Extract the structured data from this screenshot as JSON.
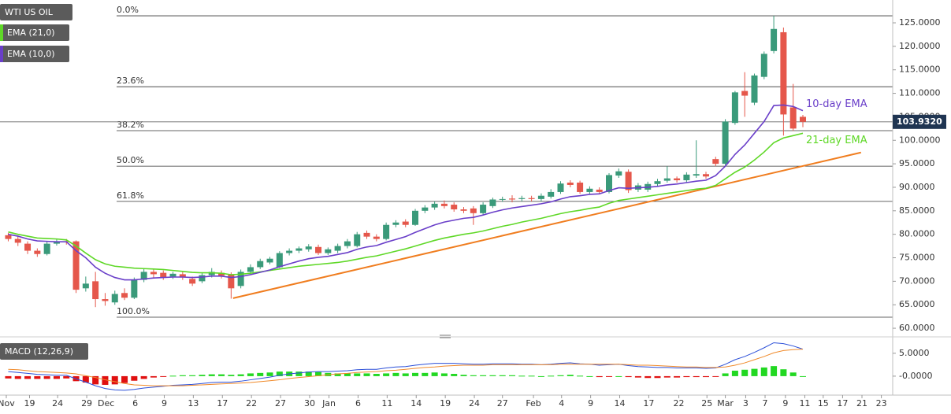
{
  "chart_data": {
    "type": "candlestick",
    "title": "WTI US OIL",
    "up_color": "#3a9a7a",
    "down_color": "#e5574b",
    "x": [
      0,
      1,
      2,
      3,
      4,
      5,
      6,
      7,
      8,
      9,
      10,
      11,
      12,
      13,
      14,
      15,
      16,
      17,
      18,
      19,
      20,
      21,
      22,
      23,
      24,
      25,
      26,
      27,
      28,
      29,
      30,
      31,
      32,
      33,
      34,
      35,
      36,
      37,
      38,
      39,
      40,
      41,
      42,
      43,
      44,
      45,
      46,
      47,
      48,
      49,
      50,
      51,
      52,
      53,
      54,
      55,
      56,
      57,
      58,
      59,
      60,
      61,
      62,
      63,
      64,
      65,
      66,
      67,
      68,
      69,
      70,
      71,
      72,
      73,
      74,
      75,
      76,
      77,
      78,
      79,
      80,
      81,
      82
    ],
    "open": [
      79.8,
      79.0,
      78.0,
      76.5,
      75.8,
      78.0,
      78.5,
      78.5,
      68.5,
      70.0,
      66.2,
      65.5,
      67.5,
      66.5,
      70.3,
      72.0,
      71.8,
      71.0,
      71.5,
      70.5,
      70.0,
      71.3,
      71.8,
      71.5,
      69.0,
      72.0,
      73.0,
      74.0,
      73.0,
      76.0,
      76.5,
      76.8,
      77.3,
      76.0,
      76.5,
      77.5,
      77.5,
      80.3,
      79.5,
      79.0,
      82.0,
      82.7,
      82.0,
      85.0,
      85.7,
      86.5,
      86.3,
      85.3,
      85.5,
      84.5,
      86.0,
      87.4,
      87.6,
      87.5,
      87.7,
      87.5,
      88.0,
      89.0,
      91.0,
      91.0,
      89.0,
      89.5,
      89.0,
      92.5,
      93.3,
      89.5,
      89.5,
      90.7,
      91.4,
      91.9,
      91.5,
      92.5,
      92.8,
      96.0,
      95.0,
      103.7,
      110.5,
      108.0,
      113.5,
      119.0,
      123.0,
      107.0,
      105.0
    ],
    "high": [
      80.3,
      79.5,
      78.5,
      77.0,
      78.5,
      79.0,
      79.0,
      78.7,
      71.0,
      72.0,
      67.5,
      68.0,
      68.5,
      70.8,
      72.8,
      72.5,
      72.3,
      72.0,
      72.0,
      71.0,
      71.8,
      72.8,
      72.3,
      71.9,
      72.5,
      73.6,
      74.8,
      75.2,
      76.4,
      77.0,
      77.4,
      77.9,
      77.8,
      77.2,
      78.0,
      79.0,
      80.5,
      80.8,
      80.0,
      82.5,
      83.0,
      83.2,
      85.4,
      86.2,
      87.0,
      87.2,
      86.8,
      85.8,
      86.0,
      86.8,
      87.8,
      88.0,
      88.3,
      88.2,
      88.2,
      88.7,
      89.6,
      91.3,
      91.5,
      91.4,
      90.2,
      90.0,
      93.0,
      94.0,
      93.8,
      90.9,
      91.2,
      91.8,
      94.5,
      92.3,
      93.2,
      100.0,
      93.3,
      96.5,
      104.5,
      110.5,
      114.5,
      114.2,
      118.9,
      126.5,
      124.0,
      112.0,
      105.4
    ],
    "low": [
      78.5,
      77.5,
      75.8,
      75.2,
      75.5,
      77.6,
      77.8,
      67.5,
      67.8,
      64.5,
      64.8,
      65.0,
      66.0,
      66.2,
      69.8,
      70.8,
      70.3,
      70.5,
      70.3,
      69.0,
      69.6,
      70.8,
      70.6,
      66.3,
      68.5,
      71.5,
      72.6,
      73.6,
      72.8,
      75.5,
      76.0,
      76.3,
      75.6,
      75.6,
      76.0,
      77.0,
      77.2,
      79.0,
      78.5,
      78.7,
      81.5,
      81.5,
      81.8,
      84.5,
      85.2,
      85.5,
      84.8,
      84.5,
      82.0,
      84.0,
      85.6,
      86.9,
      86.8,
      87.0,
      87.0,
      87.0,
      87.6,
      88.6,
      90.0,
      88.6,
      88.5,
      88.5,
      88.7,
      92.0,
      88.8,
      89.0,
      89.0,
      90.2,
      91.0,
      91.0,
      91.0,
      92.0,
      91.8,
      94.5,
      94.7,
      103.3,
      105.0,
      107.5,
      113.0,
      118.5,
      101.0,
      102.0,
      102.8
    ],
    "close": [
      79.0,
      78.2,
      76.5,
      75.8,
      78.0,
      78.5,
      78.4,
      68.2,
      69.5,
      66.2,
      65.8,
      67.3,
      66.5,
      70.3,
      72.0,
      71.5,
      70.8,
      71.6,
      70.8,
      69.5,
      71.3,
      72.0,
      71.2,
      68.5,
      72.0,
      73.0,
      74.3,
      74.8,
      76.0,
      76.5,
      77.0,
      77.4,
      76.0,
      76.8,
      77.5,
      78.5,
      80.0,
      79.5,
      79.0,
      82.0,
      82.5,
      82.0,
      85.0,
      85.7,
      86.5,
      86.0,
      85.3,
      85.0,
      84.5,
      86.3,
      87.4,
      87.5,
      87.4,
      87.7,
      87.5,
      88.2,
      89.0,
      90.8,
      90.5,
      89.0,
      89.7,
      89.0,
      92.6,
      93.4,
      89.4,
      90.4,
      90.7,
      91.3,
      91.9,
      91.5,
      92.7,
      92.8,
      92.3,
      95.0,
      104.0,
      110.2,
      109.5,
      113.8,
      118.4,
      123.7,
      105.5,
      102.5,
      103.93
    ],
    "series": [
      {
        "name": "EMA (21,0)",
        "label": "21-day EMA",
        "color": "#5fd827",
        "values": [
          80.5,
          80,
          79.6,
          79.2,
          79.1,
          79,
          78.8,
          77.5,
          76,
          74.6,
          73.7,
          73.2,
          73,
          72.8,
          72.7,
          72.6,
          72.5,
          72.3,
          72.1,
          71.9,
          71.8,
          71.8,
          71.7,
          71.4,
          71.5,
          71.7,
          72,
          72.3,
          72.6,
          72.9,
          73.2,
          73.4,
          73.6,
          73.8,
          74,
          74.3,
          74.7,
          75.1,
          75.4,
          75.9,
          76.4,
          76.9,
          77.5,
          78.1,
          78.7,
          79.2,
          79.6,
          80,
          80.3,
          80.7,
          81.2,
          81.7,
          82.1,
          82.6,
          83,
          83.4,
          83.9,
          84.4,
          84.8,
          85.1,
          85.5,
          85.8,
          86.6,
          87.2,
          87.5,
          87.8,
          88.1,
          88.4,
          88.7,
          89,
          89.3,
          89.6,
          89.8,
          90.4,
          91.8,
          93.2,
          94.3,
          95.8,
          97.5,
          99.5,
          100.5,
          101,
          101.5
        ]
      },
      {
        "name": "EMA (10,0)",
        "label": "10-day EMA",
        "color": "#6a3fc9",
        "values": [
          80,
          79.6,
          79,
          78.6,
          78.5,
          78.4,
          78.4,
          76.5,
          75,
          73,
          71.7,
          70.8,
          70.3,
          70.3,
          70.5,
          70.7,
          70.8,
          70.9,
          70.9,
          70.8,
          70.9,
          71.1,
          71.1,
          70.8,
          71,
          71.4,
          71.9,
          72.4,
          73.1,
          73.7,
          74.3,
          74.8,
          75.1,
          75.3,
          75.7,
          76.1,
          76.8,
          77.3,
          77.6,
          78.3,
          78.9,
          79.5,
          80.4,
          81.2,
          82,
          82.6,
          83,
          83.4,
          83.6,
          84.1,
          84.7,
          85.2,
          85.6,
          85.9,
          86.2,
          86.5,
          86.9,
          87.5,
          88,
          88.2,
          88.5,
          88.6,
          89.3,
          89.9,
          89.8,
          89.9,
          90,
          90.2,
          90.5,
          90.7,
          91,
          91.3,
          91.5,
          92.5,
          94.5,
          97,
          99,
          101.5,
          104,
          107.4,
          107.5,
          107.2,
          106.3
        ]
      }
    ],
    "trendline": {
      "color": "#f07d1f",
      "x": [
        23.2,
        88.0
      ],
      "values": [
        66.4,
        97.4
      ]
    },
    "fibonacci": [
      {
        "label": "0.0%",
        "value": 126.5
      },
      {
        "label": "23.6%",
        "value": 111.4
      },
      {
        "label": "38.2%",
        "value": 102.05
      },
      {
        "label": "50.0%",
        "value": 94.5
      },
      {
        "label": "61.8%",
        "value": 87.0
      },
      {
        "label": "100.0%",
        "value": 62.35
      }
    ],
    "last_price": {
      "value": 103.932,
      "label": "103.9320"
    },
    "xlim": [
      -0.85,
      91.27
    ],
    "xticks": [
      {
        "value": -0.2,
        "label": "Nov"
      },
      {
        "value": 2.2,
        "label": "19"
      },
      {
        "value": 5.1,
        "label": "24"
      },
      {
        "value": 8.1,
        "label": "29"
      },
      {
        "value": 10.1,
        "label": "Dec"
      },
      {
        "value": 13.1,
        "label": "6"
      },
      {
        "value": 16.1,
        "label": "9"
      },
      {
        "value": 19.1,
        "label": "13"
      },
      {
        "value": 22.1,
        "label": "17"
      },
      {
        "value": 25.1,
        "label": "22"
      },
      {
        "value": 28.1,
        "label": "27"
      },
      {
        "value": 31.1,
        "label": "30"
      },
      {
        "value": 33.1,
        "label": "Jan"
      },
      {
        "value": 36.1,
        "label": "6"
      },
      {
        "value": 39.1,
        "label": "11"
      },
      {
        "value": 42.1,
        "label": "14"
      },
      {
        "value": 45.1,
        "label": "19"
      },
      {
        "value": 48.1,
        "label": "24"
      },
      {
        "value": 51.0,
        "label": "27"
      },
      {
        "value": 54.2,
        "label": "Feb"
      },
      {
        "value": 57.1,
        "label": "4"
      },
      {
        "value": 60.1,
        "label": "9"
      },
      {
        "value": 63.1,
        "label": "14"
      },
      {
        "value": 66.1,
        "label": "17"
      },
      {
        "value": 69.2,
        "label": "22"
      },
      {
        "value": 72.1,
        "label": "25"
      },
      {
        "value": 74.0,
        "label": "Mar"
      },
      {
        "value": 76.1,
        "label": "3"
      },
      {
        "value": 78.1,
        "label": "7"
      },
      {
        "value": 80.2,
        "label": "9"
      },
      {
        "value": 82.2,
        "label": "11"
      },
      {
        "value": 84.1,
        "label": "15"
      },
      {
        "value": 86.1,
        "label": "17"
      },
      {
        "value": 88.1,
        "label": "21"
      },
      {
        "value": 90.1,
        "label": "23"
      }
    ],
    "ylim": [
      58.67,
      129.86
    ],
    "yticks": [
      {
        "value": 60,
        "label": "60.0000"
      },
      {
        "value": 65,
        "label": "65.0000"
      },
      {
        "value": 70,
        "label": "70.0000"
      },
      {
        "value": 75,
        "label": "75.0000"
      },
      {
        "value": 80,
        "label": "80.0000"
      },
      {
        "value": 85,
        "label": "85.0000"
      },
      {
        "value": 90,
        "label": "90.0000"
      },
      {
        "value": 95,
        "label": "95.0000"
      },
      {
        "value": 100,
        "label": "100.0000"
      },
      {
        "value": 105,
        "label": "105.0000"
      },
      {
        "value": 110,
        "label": "110.0000"
      },
      {
        "value": 115,
        "label": "115.0000"
      },
      {
        "value": 120,
        "label": "120.0000"
      },
      {
        "value": 125,
        "label": "125.0000"
      }
    ],
    "macd": {
      "title": "MACD (12,26,9)",
      "ylim": [
        -3.8,
        7.9
      ],
      "yticks": [
        {
          "value": 5,
          "label": "5.0000"
        },
        {
          "value": 0,
          "label": "-0.0000"
        }
      ],
      "positive_color": "#22d822",
      "negative_color": "#e01010",
      "series": [
        {
          "color": "#2b4fd8",
          "values": [
            1.0,
            0.8,
            0.6,
            0.4,
            0.3,
            0.2,
            0.2,
            -0.6,
            -1.3,
            -2.1,
            -2.7,
            -3.0,
            -3.1,
            -2.9,
            -2.6,
            -2.4,
            -2.2,
            -2.0,
            -1.9,
            -1.8,
            -1.6,
            -1.4,
            -1.3,
            -1.3,
            -1.1,
            -0.8,
            -0.5,
            -0.2,
            0.2,
            0.5,
            0.7,
            0.9,
            1.0,
            1.0,
            1.1,
            1.2,
            1.4,
            1.5,
            1.5,
            1.8,
            2.0,
            2.1,
            2.4,
            2.6,
            2.8,
            2.8,
            2.8,
            2.7,
            2.6,
            2.6,
            2.7,
            2.7,
            2.7,
            2.6,
            2.6,
            2.5,
            2.6,
            2.8,
            2.9,
            2.7,
            2.6,
            2.4,
            2.5,
            2.6,
            2.3,
            2.1,
            2.0,
            1.9,
            1.9,
            1.8,
            1.8,
            1.8,
            1.7,
            1.8,
            2.6,
            3.6,
            4.3,
            5.2,
            6.2,
            7.3,
            7.1,
            6.6,
            5.9
          ]
        },
        {
          "color": "#f08a2a",
          "values": [
            1.5,
            1.4,
            1.2,
            1.0,
            0.9,
            0.8,
            0.7,
            0.5,
            0.1,
            -0.3,
            -0.8,
            -1.2,
            -1.6,
            -1.9,
            -2.0,
            -2.1,
            -2.1,
            -2.1,
            -2.1,
            -2.0,
            -1.9,
            -1.8,
            -1.7,
            -1.6,
            -1.5,
            -1.4,
            -1.2,
            -1.0,
            -0.8,
            -0.5,
            -0.3,
            -0.1,
            0.1,
            0.3,
            0.5,
            0.6,
            0.8,
            0.9,
            1.0,
            1.2,
            1.3,
            1.5,
            1.7,
            1.9,
            2.0,
            2.2,
            2.3,
            2.4,
            2.4,
            2.4,
            2.5,
            2.5,
            2.5,
            2.5,
            2.5,
            2.5,
            2.5,
            2.6,
            2.6,
            2.6,
            2.6,
            2.6,
            2.6,
            2.6,
            2.5,
            2.4,
            2.4,
            2.3,
            2.2,
            2.1,
            2.0,
            2.0,
            1.9,
            1.9,
            2.0,
            2.4,
            2.9,
            3.6,
            4.3,
            5.1,
            5.6,
            5.8,
            5.9
          ]
        }
      ],
      "histogram": [
        -0.5,
        -0.6,
        -0.6,
        -0.6,
        -0.6,
        -0.6,
        -0.5,
        -1.1,
        -1.4,
        -1.8,
        -1.9,
        -1.8,
        -1.5,
        -1.0,
        -0.6,
        -0.3,
        -0.1,
        0.1,
        0.2,
        0.2,
        0.3,
        0.4,
        0.4,
        0.3,
        0.4,
        0.6,
        0.7,
        0.8,
        1.0,
        1.0,
        1.0,
        1.0,
        0.9,
        0.7,
        0.6,
        0.6,
        0.6,
        0.6,
        0.5,
        0.6,
        0.7,
        0.6,
        0.7,
        0.7,
        0.8,
        0.6,
        0.5,
        0.3,
        0.2,
        0.2,
        0.2,
        0.2,
        0.2,
        0.1,
        0.1,
        0.0,
        0.1,
        0.2,
        0.3,
        0.1,
        0.0,
        -0.2,
        -0.1,
        0.0,
        -0.2,
        -0.3,
        -0.4,
        -0.4,
        -0.3,
        -0.3,
        -0.2,
        -0.2,
        -0.2,
        -0.1,
        0.6,
        1.2,
        1.4,
        1.6,
        1.9,
        2.2,
        1.5,
        0.8,
        0.0
      ]
    }
  }
}
